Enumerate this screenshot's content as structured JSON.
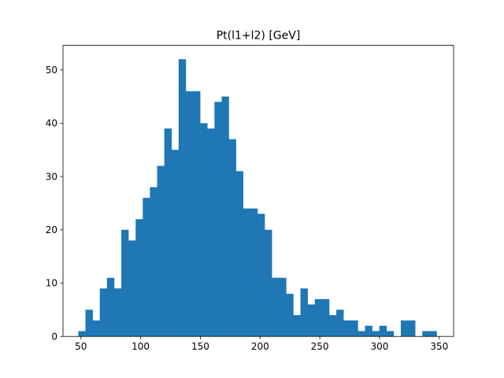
{
  "chart_data": {
    "type": "bar",
    "title": "Pt(l1+l2) [GeV]",
    "xlabel": "",
    "ylabel": "",
    "bar_color": "#1f77b4",
    "xlim": [
      35,
      362
    ],
    "ylim": [
      0,
      54.6
    ],
    "x_ticks": [
      "50",
      "100",
      "150",
      "200",
      "250",
      "300",
      "350"
    ],
    "y_ticks": [
      "0",
      "10",
      "20",
      "30",
      "40",
      "50"
    ],
    "bin_left_edges": [
      47.8,
      53.8,
      59.8,
      65.8,
      71.8,
      77.8,
      83.8,
      89.8,
      95.8,
      101.8,
      107.8,
      113.8,
      119.8,
      125.8,
      131.8,
      137.8,
      143.8,
      149.8,
      155.8,
      161.8,
      167.8,
      173.8,
      179.8,
      185.8,
      191.8,
      197.8,
      203.8,
      209.8,
      215.8,
      221.8,
      227.8,
      233.8,
      239.8,
      245.8,
      251.8,
      257.8,
      263.8,
      269.8,
      275.8,
      281.8,
      287.8,
      293.8,
      299.8,
      305.8,
      311.8,
      317.8,
      323.8,
      329.8,
      335.8,
      341.8
    ],
    "bin_width": 6.0,
    "counts": [
      1,
      5,
      3,
      9,
      11,
      9,
      20,
      18,
      22,
      26,
      28,
      32,
      39,
      35,
      52,
      46,
      46,
      40,
      39,
      44,
      45,
      37,
      31,
      24,
      24,
      23,
      20,
      11,
      11,
      8,
      4,
      9,
      6,
      7,
      7,
      4,
      5,
      3,
      3,
      1,
      2,
      1,
      2,
      1,
      0,
      3,
      3,
      0,
      1,
      1
    ]
  }
}
